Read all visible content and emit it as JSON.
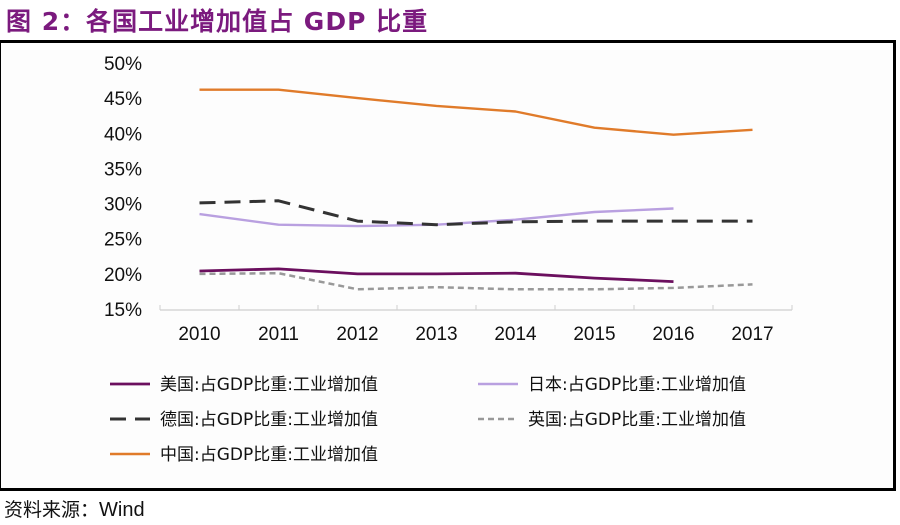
{
  "figure": {
    "title": "图 2：各国工业增加值占 GDP 比重",
    "source_label": "资料来源：",
    "source_value": "Wind"
  },
  "colors": {
    "title": "#7b1a7e",
    "usa": "#6b0f5e",
    "japan": "#b9a0e0",
    "germany": "#333333",
    "uk": "#999999",
    "china": "#e07b2a"
  },
  "chart_data": {
    "type": "line",
    "title": "图 2：各国工业增加值占 GDP 比重",
    "xlabel": "",
    "ylabel": "",
    "x": [
      "2010",
      "2011",
      "2012",
      "2013",
      "2014",
      "2015",
      "2016",
      "2017"
    ],
    "ylim": [
      15,
      50
    ],
    "yticks": [
      15,
      20,
      25,
      30,
      35,
      40,
      45,
      50
    ],
    "ytick_labels": [
      "15%",
      "20%",
      "25%",
      "30%",
      "35%",
      "40%",
      "45%",
      "50%"
    ],
    "grid": false,
    "legend_position": "bottom",
    "series": [
      {
        "key": "usa",
        "name": "美国:占GDP比重:工业增加值",
        "style": "solid",
        "values": [
          20.4,
          20.7,
          20.0,
          20.0,
          20.1,
          19.4,
          18.9,
          null
        ]
      },
      {
        "key": "japan",
        "name": "日本:占GDP比重:工业增加值",
        "style": "solid",
        "values": [
          28.5,
          27.0,
          26.8,
          27.0,
          27.7,
          28.8,
          29.3,
          null
        ]
      },
      {
        "key": "germany",
        "name": "德国:占GDP比重:工业增加值",
        "style": "long-dash",
        "values": [
          30.1,
          30.4,
          27.5,
          27.0,
          27.4,
          27.5,
          27.5,
          27.5
        ]
      },
      {
        "key": "uk",
        "name": "英国:占GDP比重:工业增加值",
        "style": "short-dash",
        "values": [
          20.0,
          20.1,
          17.8,
          18.1,
          17.8,
          17.8,
          18.0,
          18.5
        ]
      },
      {
        "key": "china",
        "name": "中国:占GDP比重:工业增加值",
        "style": "solid",
        "values": [
          46.2,
          46.2,
          45.0,
          43.9,
          43.1,
          40.8,
          39.8,
          40.5
        ]
      }
    ]
  }
}
